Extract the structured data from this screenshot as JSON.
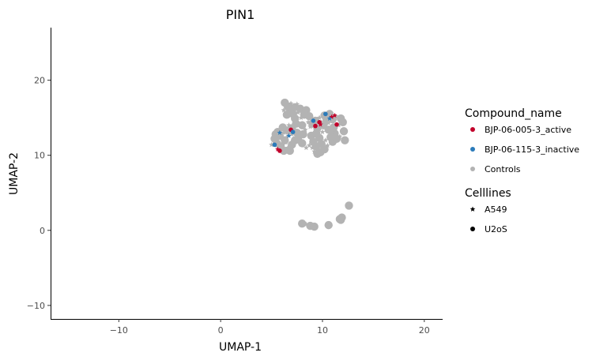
{
  "chart_data": {
    "type": "scatter",
    "title": "PIN1",
    "xlabel": "UMAP-1",
    "ylabel": "UMAP-2",
    "xlim": [
      -16.7,
      21.8
    ],
    "ylim": [
      -11.8,
      27.0
    ],
    "xticks": [
      -10,
      0,
      10,
      20
    ],
    "xtick_labels": [
      "−10",
      "0",
      "10",
      "20"
    ],
    "yticks": [
      -10,
      0,
      10,
      20
    ],
    "ytick_labels": [
      "−10",
      "0",
      "10",
      "20"
    ],
    "grid": false,
    "legend_placement": "right",
    "legends": [
      {
        "title": "Compound_name",
        "entries": [
          {
            "label": "BJP-06-005-3_active",
            "color": "#c2002b",
            "shape": "circle"
          },
          {
            "label": "BJP-06-115-3_inactive",
            "color": "#2b7bba",
            "shape": "circle"
          },
          {
            "label": "Controls",
            "color": "#b3b3b3",
            "shape": "circle"
          }
        ]
      },
      {
        "title": "Celllines",
        "entries": [
          {
            "label": "A549",
            "color": "#000000",
            "shape": "star"
          },
          {
            "label": "U2oS",
            "color": "#000000",
            "shape": "circle"
          }
        ]
      }
    ],
    "series": [
      {
        "name": "Controls",
        "color": "#b3b3b3",
        "points": [
          [
            9.5,
            10.2
          ],
          [
            9.2,
            10.5
          ],
          [
            9.8,
            10.4
          ],
          [
            10.2,
            10.8
          ],
          [
            9.0,
            11.0
          ],
          [
            9.4,
            11.2
          ],
          [
            9.9,
            11.5
          ],
          [
            10.5,
            11.3
          ],
          [
            11.0,
            11.8
          ],
          [
            11.4,
            12.2
          ],
          [
            11.7,
            12.5
          ],
          [
            11.2,
            12.9
          ],
          [
            10.8,
            12.4
          ],
          [
            10.3,
            12.0
          ],
          [
            9.7,
            12.3
          ],
          [
            9.1,
            11.8
          ],
          [
            8.7,
            11.3
          ],
          [
            8.9,
            12.6
          ],
          [
            9.4,
            12.9
          ],
          [
            10.0,
            13.1
          ],
          [
            10.6,
            13.4
          ],
          [
            11.1,
            13.7
          ],
          [
            11.6,
            14.0
          ],
          [
            12.0,
            14.4
          ],
          [
            11.8,
            14.9
          ],
          [
            11.3,
            15.2
          ],
          [
            10.7,
            15.5
          ],
          [
            10.2,
            15.3
          ],
          [
            9.7,
            15.0
          ],
          [
            9.3,
            14.6
          ],
          [
            9.0,
            14.2
          ],
          [
            8.8,
            13.8
          ],
          [
            9.5,
            13.6
          ],
          [
            10.1,
            14.0
          ],
          [
            10.6,
            14.3
          ],
          [
            11.0,
            14.8
          ],
          [
            10.4,
            14.7
          ],
          [
            9.9,
            14.4
          ],
          [
            12.1,
            13.2
          ],
          [
            12.2,
            12.0
          ],
          [
            8.4,
            11.0
          ],
          [
            8.0,
            11.6
          ],
          [
            7.6,
            12.1
          ],
          [
            7.8,
            12.7
          ],
          [
            7.3,
            12.0
          ],
          [
            7.0,
            11.4
          ],
          [
            6.6,
            11.0
          ],
          [
            6.2,
            10.6
          ],
          [
            6.8,
            10.6
          ],
          [
            6.4,
            11.7
          ],
          [
            5.9,
            11.2
          ],
          [
            5.5,
            11.6
          ],
          [
            5.0,
            11.4
          ],
          [
            5.3,
            12.2
          ],
          [
            5.8,
            12.6
          ],
          [
            6.2,
            13.0
          ],
          [
            6.6,
            13.3
          ],
          [
            7.0,
            13.6
          ],
          [
            6.5,
            12.4
          ],
          [
            5.6,
            13.1
          ],
          [
            6.1,
            13.7
          ],
          [
            6.7,
            14.0
          ],
          [
            7.4,
            14.2
          ],
          [
            8.0,
            14.0
          ],
          [
            8.3,
            13.4
          ],
          [
            8.1,
            12.8
          ],
          [
            7.5,
            13.0
          ],
          [
            7.0,
            12.8
          ],
          [
            6.3,
            12.0
          ],
          [
            5.4,
            12.8
          ],
          [
            6.2,
            16.0
          ],
          [
            6.6,
            16.5
          ],
          [
            6.3,
            17.0
          ],
          [
            6.9,
            16.9
          ],
          [
            7.3,
            16.4
          ],
          [
            7.8,
            16.2
          ],
          [
            7.6,
            15.7
          ],
          [
            7.1,
            15.5
          ],
          [
            6.8,
            15.9
          ],
          [
            7.5,
            16.8
          ],
          [
            8.4,
            16.0
          ],
          [
            8.2,
            15.4
          ],
          [
            7.9,
            15.0
          ],
          [
            7.3,
            14.9
          ],
          [
            6.5,
            15.4
          ],
          [
            8.6,
            14.4
          ],
          [
            8.7,
            15.2
          ],
          [
            8.0,
            0.9
          ],
          [
            8.4,
            0.8
          ],
          [
            8.8,
            0.6
          ],
          [
            9.2,
            0.5
          ],
          [
            8.6,
            0.7
          ],
          [
            10.6,
            0.7
          ],
          [
            11.8,
            1.4
          ],
          [
            12.0,
            1.6
          ],
          [
            11.9,
            1.7
          ],
          [
            11.7,
            1.5
          ],
          [
            12.5,
            3.2
          ],
          [
            12.6,
            3.3
          ]
        ],
        "shapes": "mixed"
      },
      {
        "name": "BJP-06-005-3_active",
        "color": "#c2002b",
        "points": [
          [
            9.7,
            14.4
          ],
          [
            9.8,
            14.1
          ],
          [
            11.4,
            14.1
          ],
          [
            11.2,
            15.3
          ],
          [
            6.9,
            13.4
          ],
          [
            5.6,
            10.8
          ],
          [
            5.8,
            10.6
          ],
          [
            10.9,
            15.1
          ],
          [
            9.3,
            13.9
          ]
        ]
      },
      {
        "name": "BJP-06-115-3_inactive",
        "color": "#2b7bba",
        "points": [
          [
            10.3,
            15.5
          ],
          [
            6.7,
            12.6
          ],
          [
            5.3,
            11.4
          ],
          [
            10.7,
            14.9
          ],
          [
            9.1,
            14.6
          ],
          [
            5.8,
            13.0
          ],
          [
            7.1,
            13.1
          ]
        ]
      }
    ]
  }
}
